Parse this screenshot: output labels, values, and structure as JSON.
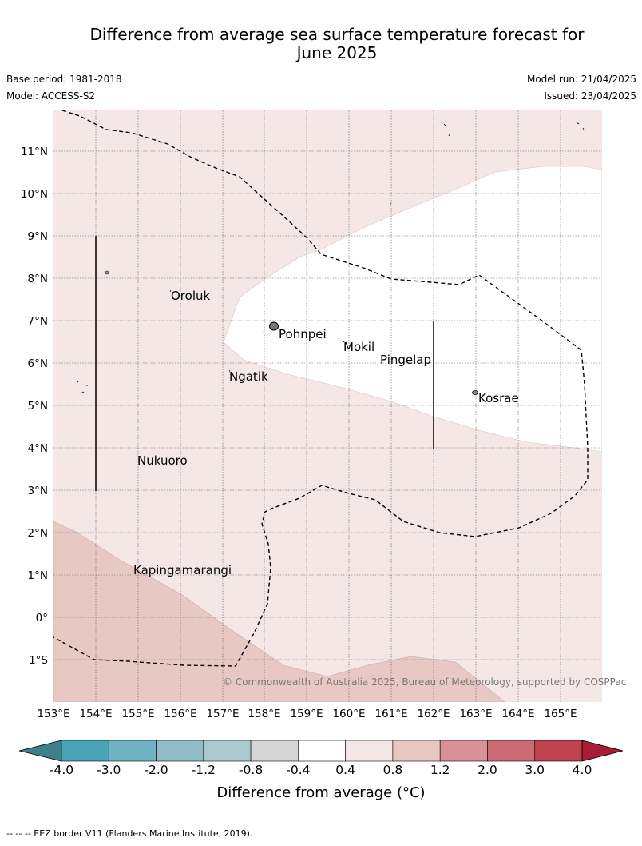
{
  "title_line1": "Difference from average sea surface temperature forecast for",
  "title_line2": "June 2025",
  "base_period": "Base period: 1981-2018",
  "model": "Model: ACCESS-S2",
  "model_run": "Model run: 21/04/2025",
  "issued": "Issued: 23/04/2025",
  "credit": "© Commonwealth of Australia 2025, Bureau of Meteorology, supported by COSPPac",
  "lon_labels": [
    "153°E",
    "154°E",
    "155°E",
    "156°E",
    "157°E",
    "158°E",
    "159°E",
    "160°E",
    "161°E",
    "162°E",
    "163°E",
    "164°E",
    "165°E"
  ],
  "lat_labels": [
    "11°N",
    "10°N",
    "9°N",
    "8°N",
    "7°N",
    "6°N",
    "5°N",
    "4°N",
    "3°N",
    "2°N",
    "1°N",
    "0°",
    "1°S"
  ],
  "places": [
    {
      "name": "Oroluk"
    },
    {
      "name": "Pohnpei"
    },
    {
      "name": "Mokil"
    },
    {
      "name": "Pingelap"
    },
    {
      "name": "Ngatik"
    },
    {
      "name": "Kosrae"
    },
    {
      "name": "Nukuoro"
    },
    {
      "name": "Kapingamarangi"
    }
  ],
  "colorbar": {
    "title": "Difference from average (°C)",
    "ticks": [
      "-4.0",
      "-3.0",
      "-2.0",
      "-1.2",
      "-0.8",
      "-0.4",
      "0.4",
      "0.8",
      "1.2",
      "2.0",
      "3.0",
      "4.0"
    ],
    "colors": [
      "#4aa3b4",
      "#6fb2c1",
      "#8fbcc6",
      "#a9c9cc",
      "#d3d6d4",
      "#ffffff",
      "#f4e6e6",
      "#e8c7c3",
      "#d99097",
      "#cd6b74",
      "#c0434f"
    ],
    "under_color": "#3e7f8c",
    "over_color": "#a81c36"
  },
  "footnote": "-- --  -- EEZ border V11 (Flanders Marine Institute, 2019)."
}
